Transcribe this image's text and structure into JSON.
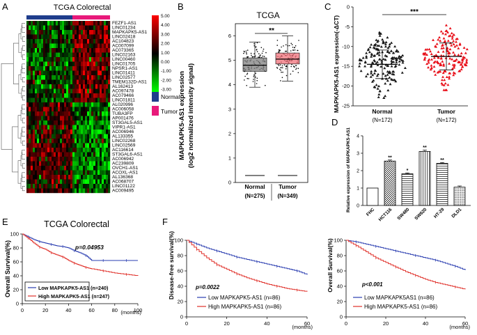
{
  "panel_letters": [
    "A",
    "B",
    "C",
    "D",
    "E",
    "F"
  ],
  "colors": {
    "normal": "#1f3d8c",
    "tumor": "#e8197a",
    "box_normal": "#7f7f7f",
    "box_tumor": "#f0707a",
    "dot_normal": "#1a1a1a",
    "dot_tumor": "#e8101a",
    "km_low": "#2a3db0",
    "km_high": "#e0302a",
    "heat_high": "#ff0000",
    "heat_mid": "#000000",
    "heat_low": "#00ff00"
  },
  "chart_data": [
    {
      "panel": "A",
      "type": "heatmap",
      "title": "TCGA Colorectal",
      "rows": [
        "FEZF1-AS1",
        "LINC01234",
        "MAPKAPK5-AS1",
        "LINC02418",
        "AC104823",
        "AC007099",
        "AC073365",
        "LINC02163",
        "LINC00460",
        "LINC01705",
        "NPSR1-AS1",
        "LINC01411",
        "LINC02577",
        "TMEM132D-AS1",
        "AL162413",
        "AC097478",
        "AC079466",
        "LINC01811",
        "AL020996",
        "AC006058",
        "TUBA3FP",
        "AP001476",
        "ST3GAL5-AS1",
        "VIPR1-AS1",
        "AC006946",
        "AL133355",
        "LINC02268",
        "LINC02569",
        "AC116614",
        "ST3GAL6-AS1",
        "AC006942",
        "AC239809",
        "OVCH1-AS1",
        "ACOXL-AS1",
        "AL136368",
        "AC068707",
        "LINC01122",
        "AC009495"
      ],
      "up_rows": 18,
      "groups": [
        {
          "name": "Normal",
          "color": "#1f3d8c",
          "fraction": 0.55
        },
        {
          "name": "Tumor",
          "color": "#e8197a",
          "fraction": 0.45
        }
      ],
      "colorbar": {
        "ticks": [
          "5.00",
          "4.00",
          "3.00",
          "2.00",
          "1.00",
          "0.00",
          "-1.00",
          "-2.00",
          "-3.00"
        ],
        "min": -3,
        "max": 5
      },
      "legend": [
        "Normal",
        "Tumor"
      ]
    },
    {
      "panel": "B",
      "type": "box",
      "title": "TCGA",
      "ylabel": [
        "MAPKAPK5-AS1 expression",
        "(log2 normalized intensity signal)"
      ],
      "ylim": [
        0,
        6.5
      ],
      "yticks": [
        "0",
        "1",
        "2",
        "3",
        "4",
        "5",
        "6"
      ],
      "categories": [
        "Normal",
        "Tumor"
      ],
      "counts": [
        "(N=275)",
        "(N=349)"
      ],
      "significance": "**",
      "series": [
        {
          "name": "Normal",
          "n": 275,
          "min": 3.9,
          "q1": 4.55,
          "median": 4.8,
          "q3": 5.1,
          "max": 5.75
        },
        {
          "name": "Tumor",
          "n": 349,
          "min": 4.15,
          "q1": 4.85,
          "median": 5.05,
          "q3": 5.3,
          "max": 6.0
        }
      ]
    },
    {
      "panel": "C",
      "type": "scatter",
      "ylabel": "MAPKAPK5-AS1 expression(-ΔCT)",
      "ylim": [
        -25,
        0
      ],
      "yticks": [
        "0",
        "-5",
        "-10",
        "-15",
        "-20",
        "-25"
      ],
      "categories": [
        "Normal",
        "Tumor"
      ],
      "counts": [
        "(N=172)",
        "(N=172)"
      ],
      "significance": "***",
      "series": [
        {
          "name": "Normal",
          "n": 172,
          "mean": -14.5,
          "sd": 3.6,
          "min": -23,
          "max": -5
        },
        {
          "name": "Tumor",
          "n": 172,
          "mean": -12.5,
          "sd": 3.4,
          "min": -21,
          "max": -4
        }
      ]
    },
    {
      "panel": "D",
      "type": "bar",
      "ylabel": "Relative expression of MAPKAPK5-AS1",
      "ylim": [
        0,
        4
      ],
      "yticks": [
        "0",
        "1",
        "2",
        "3",
        "4"
      ],
      "categories": [
        "FHC",
        "HCT116",
        "SW480",
        "SW620",
        "HT-29",
        "DLD1"
      ],
      "values": [
        1.0,
        2.55,
        1.82,
        3.1,
        2.42,
        1.05
      ],
      "errors": [
        0,
        0.06,
        0.05,
        0.08,
        0.05,
        0.07
      ],
      "marks": [
        "",
        "**",
        "*",
        "**",
        "**",
        ""
      ]
    },
    {
      "panel": "E",
      "type": "line",
      "title": "TCGA Colorectal",
      "ylabel": "Overall Survival(%)",
      "xlabel": "(months)",
      "xlim": [
        0,
        100
      ],
      "ylim": [
        0,
        100
      ],
      "xticks": [
        "0",
        "20",
        "40",
        "60",
        "80",
        "100"
      ],
      "yticks": [
        "0",
        "20",
        "40",
        "60",
        "80",
        "100"
      ],
      "pvalue": "p=0.04953",
      "series": [
        {
          "name": "Low  MAPKAPK5-AS1 (n=240)",
          "x": [
            0,
            5,
            10,
            15,
            20,
            25,
            30,
            35,
            40,
            45,
            50,
            55,
            60,
            70,
            80,
            90,
            100
          ],
          "y": [
            100,
            96,
            92,
            89,
            87,
            85,
            83,
            82,
            80,
            76,
            73,
            69,
            62,
            62,
            62,
            62,
            62
          ]
        },
        {
          "name": "High  MAPKAPK5-AS1 (n=247)",
          "x": [
            0,
            5,
            10,
            15,
            20,
            25,
            30,
            35,
            40,
            45,
            50,
            55,
            60,
            70,
            80,
            90,
            100
          ],
          "y": [
            100,
            94,
            87,
            81,
            78,
            73,
            70,
            67,
            62,
            58,
            55,
            52,
            50,
            47,
            44,
            42,
            40
          ]
        }
      ]
    },
    {
      "panel": "F",
      "type": "line",
      "ylabel": "Disease-free survival(%)",
      "xlabel": "(months)",
      "xlim": [
        0,
        60
      ],
      "ylim": [
        0,
        100
      ],
      "xticks": [
        "0",
        "20",
        "40",
        "60"
      ],
      "yticks": [
        "0",
        "20",
        "40",
        "60",
        "80",
        "100"
      ],
      "pvalue": "p=0.0022",
      "series": [
        {
          "name": "Low MAPKAPK5-AS1 (n=86)",
          "x": [
            0,
            5,
            10,
            15,
            20,
            25,
            30,
            35,
            40,
            45,
            50,
            55,
            60
          ],
          "y": [
            100,
            95,
            90,
            86,
            82,
            78,
            75,
            72,
            69,
            66,
            63,
            60,
            55
          ]
        },
        {
          "name": "High MAPKAPK5-AS1 (n=86)",
          "x": [
            0,
            5,
            10,
            15,
            20,
            25,
            30,
            35,
            40,
            45,
            50,
            55,
            60
          ],
          "y": [
            100,
            88,
            77,
            68,
            62,
            56,
            51,
            47,
            43,
            40,
            37,
            35,
            33
          ]
        }
      ]
    },
    {
      "panel": "F",
      "type": "line",
      "ylabel": "Overall Survival(%)",
      "xlabel": "(months)",
      "xlim": [
        0,
        60
      ],
      "ylim": [
        0,
        100
      ],
      "xticks": [
        "0",
        "20",
        "40",
        "60"
      ],
      "yticks": [
        "0",
        "20",
        "40",
        "60",
        "80",
        "100"
      ],
      "pvalue": "p<0.001",
      "series": [
        {
          "name": "Low MAPKAPK5AS1 (n=86)",
          "x": [
            0,
            5,
            10,
            15,
            20,
            25,
            30,
            35,
            40,
            45,
            50,
            55,
            60
          ],
          "y": [
            100,
            98,
            95,
            92,
            89,
            86,
            83,
            80,
            77,
            74,
            70,
            66,
            61
          ]
        },
        {
          "name": "High MAPKAPK5-AS1 (n=86)",
          "x": [
            0,
            5,
            10,
            15,
            20,
            25,
            30,
            35,
            40,
            45,
            50,
            55,
            60
          ],
          "y": [
            100,
            93,
            85,
            77,
            71,
            65,
            59,
            54,
            49,
            45,
            42,
            39,
            36
          ]
        }
      ]
    }
  ]
}
